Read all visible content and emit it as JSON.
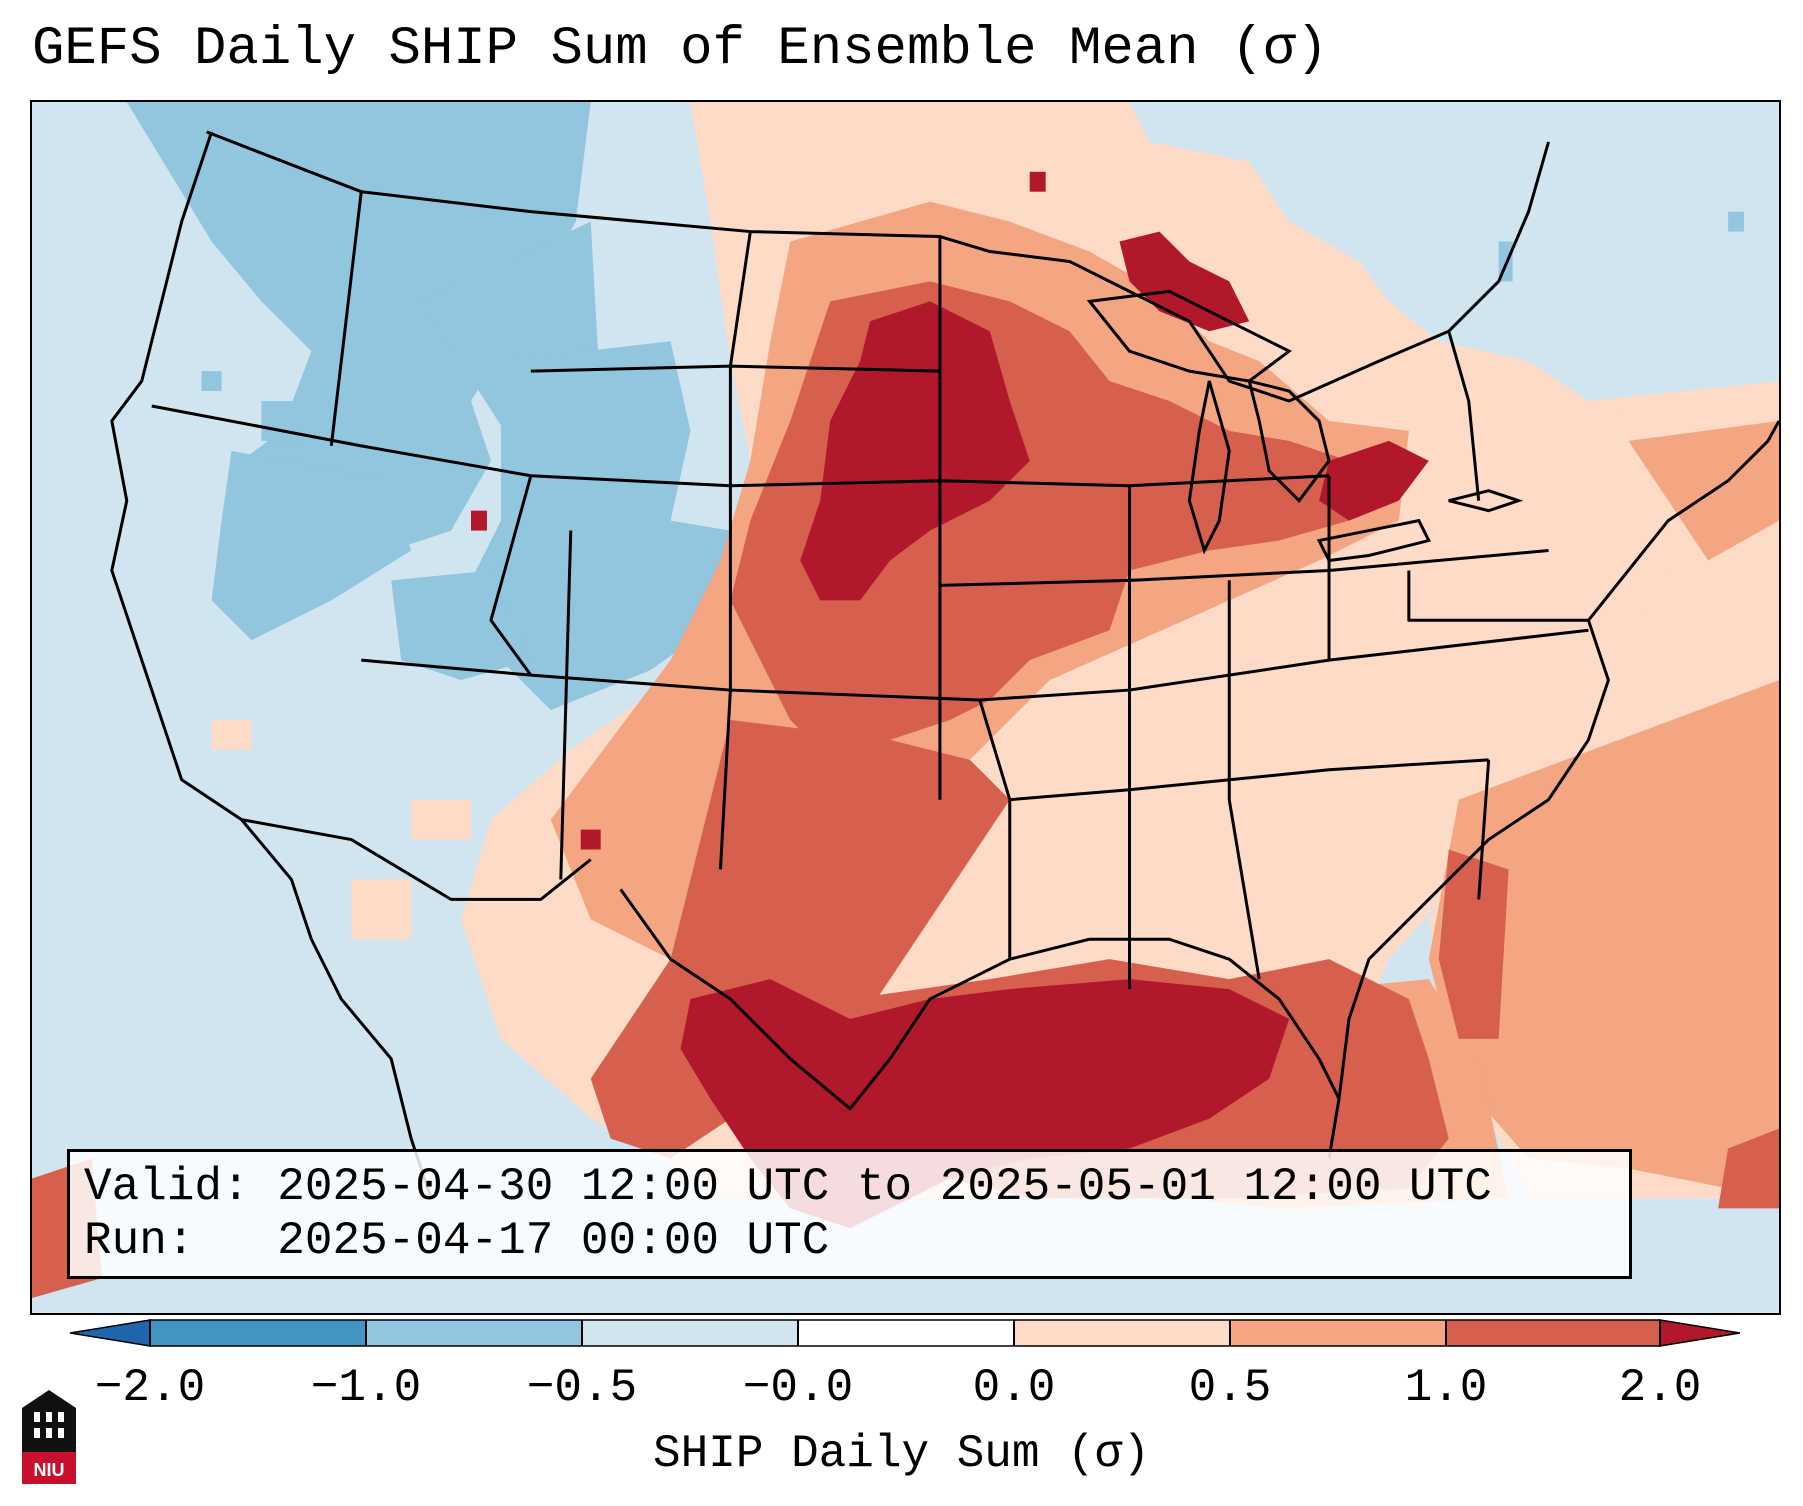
{
  "title": "GEFS Daily SHIP Sum of Ensemble Mean (σ)",
  "info": {
    "valid_label": "Valid:",
    "valid_value": "2025-04-30 12:00 UTC to 2025-05-01 12:00 UTC",
    "run_label": "Run:",
    "run_value": "2025-04-17 00:00 UTC"
  },
  "colorbar": {
    "label": "SHIP Daily Sum (σ)",
    "ticks": [
      "−2.0",
      "−1.0",
      "−0.5",
      "−0.0",
      "0.0",
      "0.5",
      "1.0",
      "2.0"
    ],
    "colors": [
      "#2166ac",
      "#4393c3",
      "#92c5de",
      "#d1e5f0",
      "#fddbc7",
      "#f4a582",
      "#d6604d",
      "#b2182b"
    ],
    "extend": "both"
  },
  "logo": {
    "text": "NIU",
    "colors": {
      "red": "#c8102e",
      "black": "#111111"
    }
  },
  "map": {
    "region": "Continental United States",
    "projection": "Lambert Conformal",
    "borders": [
      "coastlines",
      "country borders",
      "state borders"
    ]
  },
  "legend_colors": {
    "strong_negative": "#4393c3",
    "negative": "#92c5de",
    "neutral_negative": "#d1e5f0",
    "neutral_positive": "#fddbc7",
    "positive": "#f4a582",
    "high": "#d6604d",
    "very_high": "#b2182b"
  }
}
